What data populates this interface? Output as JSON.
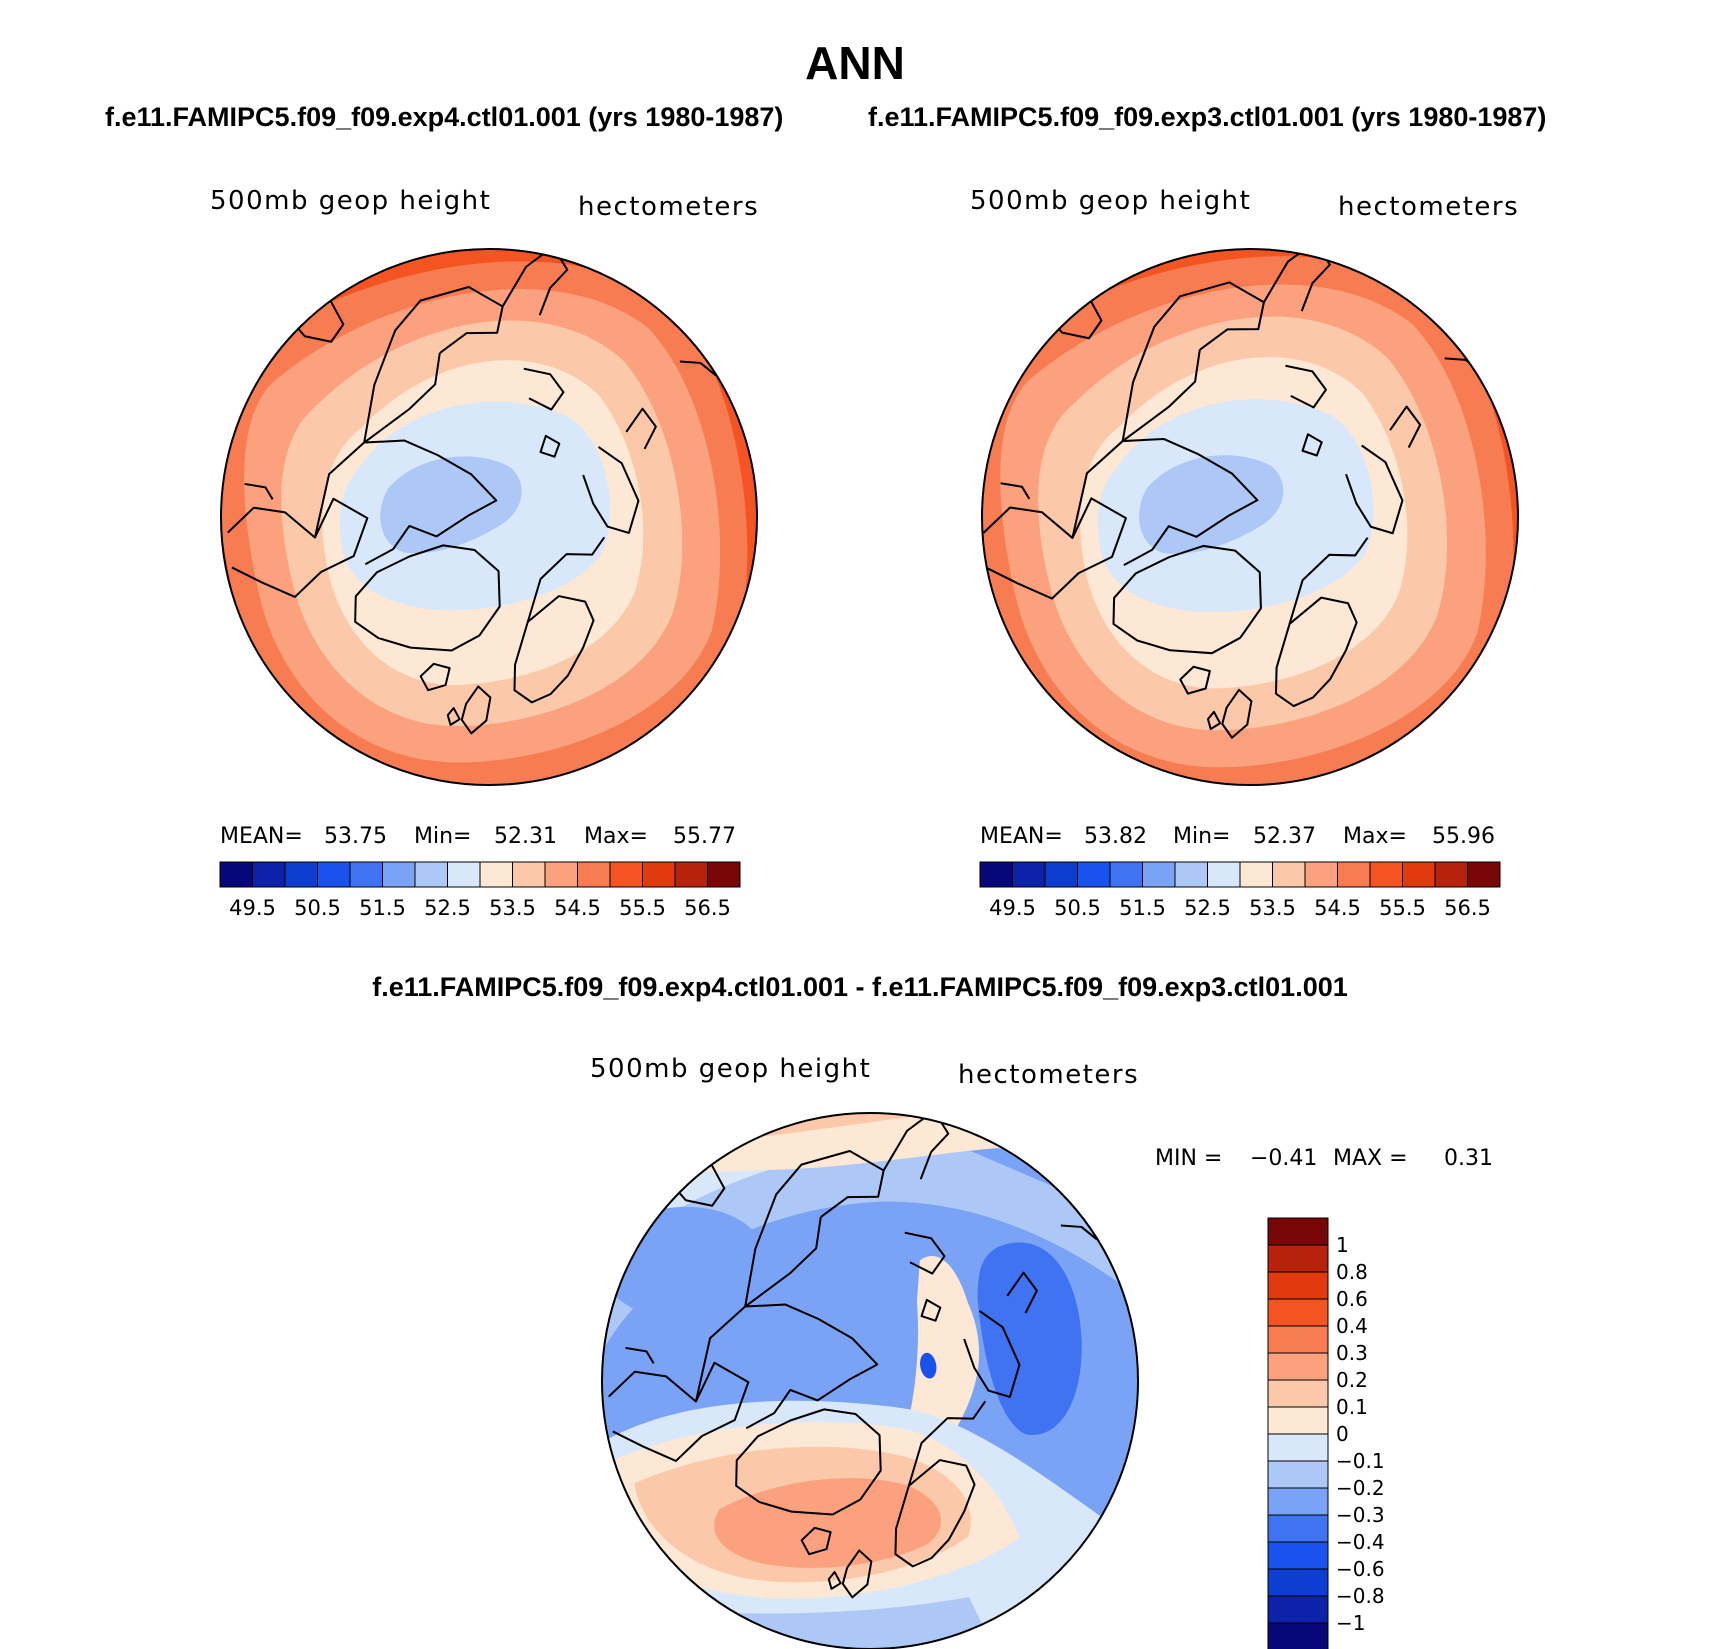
{
  "page_title": "ANN",
  "panels": {
    "left": {
      "case_title": "f.e11.FAMIPC5.f09_f09.exp4.ctl01.001 (yrs 1980-1987)",
      "variable_label": "500mb geop height",
      "units_label": "hectometers",
      "stats": {
        "mean_label": "MEAN=",
        "mean": "53.75",
        "min_label": "Min=",
        "min": "52.31",
        "max_label": "Max=",
        "max": "55.77"
      }
    },
    "right": {
      "case_title": "f.e11.FAMIPC5.f09_f09.exp3.ctl01.001 (yrs 1980-1987)",
      "variable_label": "500mb geop height",
      "units_label": "hectometers",
      "stats": {
        "mean_label": "MEAN=",
        "mean": "53.82",
        "min_label": "Min=",
        "min": "52.37",
        "max_label": "Max=",
        "max": "55.96"
      }
    },
    "diff": {
      "case_title": "f.e11.FAMIPC5.f09_f09.exp4.ctl01.001 - f.e11.FAMIPC5.f09_f09.exp3.ctl01.001",
      "variable_label": "500mb geop height",
      "units_label": "hectometers",
      "stats": {
        "min_label": "MIN =",
        "min": "−0.41",
        "max_label": "MAX =",
        "max": "0.31"
      }
    }
  },
  "colorbar_main": {
    "colors": [
      "#07077a",
      "#0d22a8",
      "#0d3ed1",
      "#1a52ee",
      "#3f73f2",
      "#7aa2f5",
      "#adc8f7",
      "#d8e8fa",
      "#fde7d5",
      "#fcc8aa",
      "#fba17d",
      "#f87c51",
      "#f45421",
      "#e03a0e",
      "#b8220c",
      "#7a0707"
    ],
    "tick_labels": [
      "49.5",
      "50.5",
      "51.5",
      "52.5",
      "53.5",
      "54.5",
      "55.5",
      "56.5"
    ]
  },
  "colorbar_diff": {
    "colors": [
      "#7a0707",
      "#b8220c",
      "#e03a0e",
      "#f45421",
      "#f87c51",
      "#fba17d",
      "#fcc8aa",
      "#fde7d5",
      "#d8e8fa",
      "#adc8f7",
      "#7aa2f5",
      "#3f73f2",
      "#1a52ee",
      "#0d3ed1",
      "#0d22a8",
      "#07077a"
    ],
    "tick_labels": [
      "1",
      "0.8",
      "0.6",
      "0.4",
      "0.3",
      "0.2",
      "0.1",
      "0",
      "−0.1",
      "−0.2",
      "−0.3",
      "−0.4",
      "−0.6",
      "−0.8",
      "−1"
    ]
  }
}
